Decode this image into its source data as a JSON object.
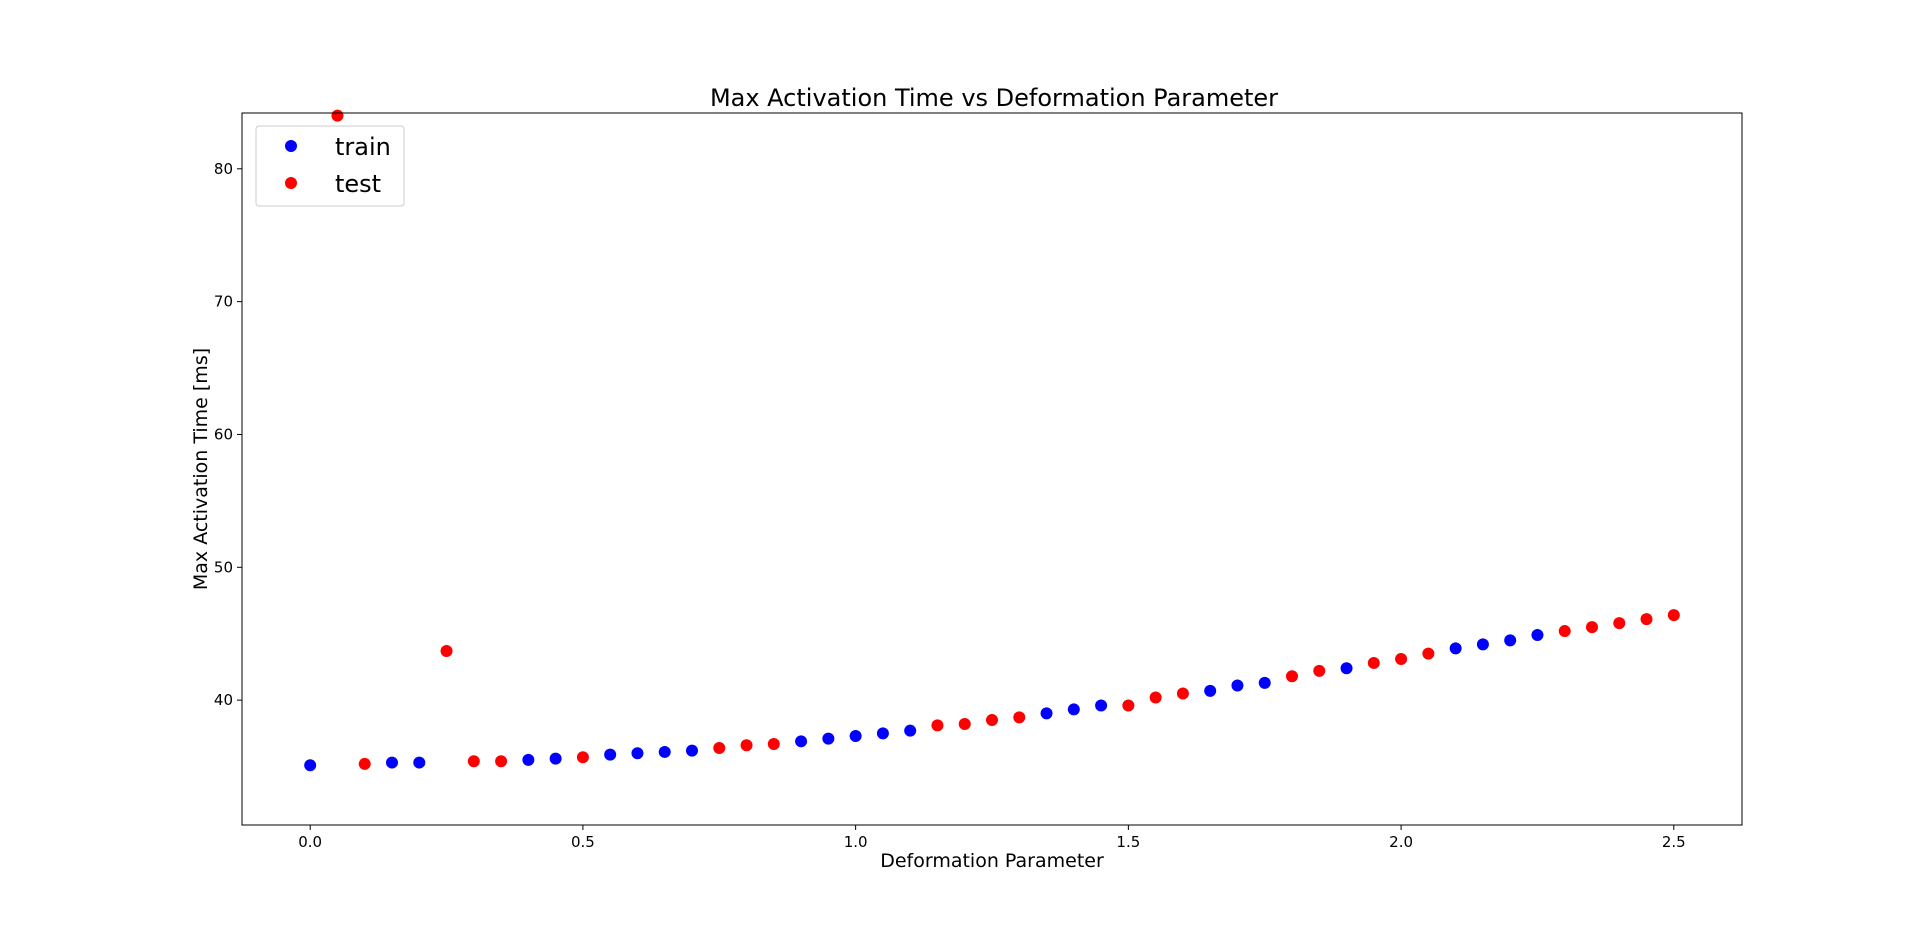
{
  "chart_data": {
    "type": "scatter",
    "title": "Max Activation Time vs Deformation Parameter",
    "xlabel": "Deformation Parameter",
    "ylabel": "Max Activation Time [ms]",
    "xlim": [
      -0.125,
      2.625
    ],
    "ylim": [
      30.6,
      84.2
    ],
    "xticks": [
      0.0,
      0.5,
      1.0,
      1.5,
      2.0,
      2.5
    ],
    "xtick_labels": [
      "0.0",
      "0.5",
      "1.0",
      "1.5",
      "2.0",
      "2.5"
    ],
    "yticks": [
      40,
      50,
      60,
      70,
      80
    ],
    "ytick_labels": [
      "40",
      "50",
      "60",
      "70",
      "80"
    ],
    "grid": false,
    "legend_position": "upper-left",
    "series": [
      {
        "name": "train",
        "color": "#0000ff",
        "points": [
          {
            "x": 0.0,
            "y": 35.1
          },
          {
            "x": 0.15,
            "y": 35.3
          },
          {
            "x": 0.2,
            "y": 35.3
          },
          {
            "x": 0.4,
            "y": 35.5
          },
          {
            "x": 0.45,
            "y": 35.6
          },
          {
            "x": 0.55,
            "y": 35.9
          },
          {
            "x": 0.6,
            "y": 36.0
          },
          {
            "x": 0.65,
            "y": 36.1
          },
          {
            "x": 0.7,
            "y": 36.2
          },
          {
            "x": 0.9,
            "y": 36.9
          },
          {
            "x": 0.95,
            "y": 37.1
          },
          {
            "x": 1.0,
            "y": 37.3
          },
          {
            "x": 1.05,
            "y": 37.5
          },
          {
            "x": 1.1,
            "y": 37.7
          },
          {
            "x": 1.35,
            "y": 39.0
          },
          {
            "x": 1.4,
            "y": 39.3
          },
          {
            "x": 1.45,
            "y": 39.6
          },
          {
            "x": 1.65,
            "y": 40.7
          },
          {
            "x": 1.7,
            "y": 41.1
          },
          {
            "x": 1.75,
            "y": 41.3
          },
          {
            "x": 1.9,
            "y": 42.4
          },
          {
            "x": 2.1,
            "y": 43.9
          },
          {
            "x": 2.15,
            "y": 44.2
          },
          {
            "x": 2.2,
            "y": 44.5
          },
          {
            "x": 2.25,
            "y": 44.9
          }
        ]
      },
      {
        "name": "test",
        "color": "#ff0000",
        "points": [
          {
            "x": 0.05,
            "y": 84.0
          },
          {
            "x": 0.1,
            "y": 35.2
          },
          {
            "x": 0.25,
            "y": 43.7
          },
          {
            "x": 0.3,
            "y": 35.4
          },
          {
            "x": 0.35,
            "y": 35.4
          },
          {
            "x": 0.5,
            "y": 35.7
          },
          {
            "x": 0.75,
            "y": 36.4
          },
          {
            "x": 0.8,
            "y": 36.6
          },
          {
            "x": 0.85,
            "y": 36.7
          },
          {
            "x": 1.15,
            "y": 38.1
          },
          {
            "x": 1.2,
            "y": 38.2
          },
          {
            "x": 1.25,
            "y": 38.5
          },
          {
            "x": 1.3,
            "y": 38.7
          },
          {
            "x": 1.5,
            "y": 39.6
          },
          {
            "x": 1.55,
            "y": 40.2
          },
          {
            "x": 1.6,
            "y": 40.5
          },
          {
            "x": 1.8,
            "y": 41.8
          },
          {
            "x": 1.85,
            "y": 42.2
          },
          {
            "x": 1.95,
            "y": 42.8
          },
          {
            "x": 2.0,
            "y": 43.1
          },
          {
            "x": 2.05,
            "y": 43.5
          },
          {
            "x": 2.3,
            "y": 45.2
          },
          {
            "x": 2.35,
            "y": 45.5
          },
          {
            "x": 2.4,
            "y": 45.8
          },
          {
            "x": 2.45,
            "y": 46.1
          },
          {
            "x": 2.5,
            "y": 46.4
          }
        ]
      }
    ]
  }
}
